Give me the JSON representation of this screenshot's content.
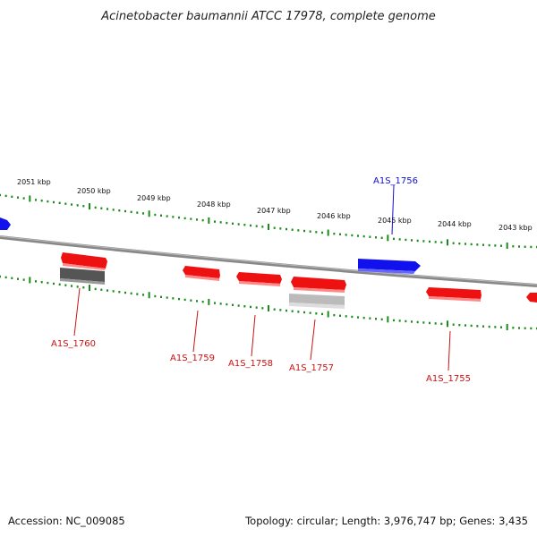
{
  "title": "Acinetobacter baumannii ATCC 17978, complete genome",
  "footer": {
    "accession": "Accession: NC_009085",
    "summary": "Topology: circular; Length: 3,976,747 bp; Genes: 3,435"
  },
  "colors": {
    "forward_gene": "#ee1111",
    "reverse_gene": "#1111ee",
    "backbone": "#888888",
    "ticks": "#1a8a1a",
    "pseudo_dark": "#555555",
    "pseudo_light": "#bbbbbb"
  },
  "scale_labels": [
    "2051 kbp",
    "2050 kbp",
    "2049 kbp",
    "2048 kbp",
    "2047 kbp",
    "2046 kbp",
    "2045 kbp",
    "2044 kbp",
    "2043 kbp"
  ],
  "gene_labels": [
    {
      "name": "A1S_1756",
      "color": "#1111cc"
    },
    {
      "name": "A1S_1760",
      "color": "#cc1111"
    },
    {
      "name": "A1S_1759",
      "color": "#cc1111"
    },
    {
      "name": "A1S_1758",
      "color": "#cc1111"
    },
    {
      "name": "A1S_1757",
      "color": "#cc1111"
    },
    {
      "name": "A1S_1755",
      "color": "#cc1111"
    }
  ]
}
